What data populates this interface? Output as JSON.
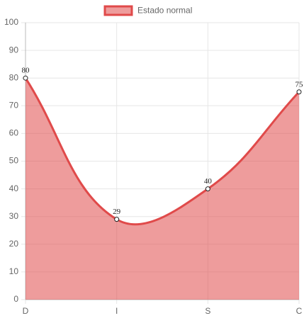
{
  "chart_data": {
    "type": "line",
    "categories": [
      "D",
      "I",
      "S",
      "C"
    ],
    "series": [
      {
        "name": "Estado normal",
        "color": "#e04a4a",
        "values": [
          80,
          29,
          40,
          75
        ]
      }
    ],
    "ylim": [
      0,
      100
    ],
    "yticks": [
      0,
      10,
      20,
      30,
      40,
      50,
      60,
      70,
      80,
      90,
      100
    ],
    "grid": true,
    "fill": true,
    "legend": "top"
  }
}
